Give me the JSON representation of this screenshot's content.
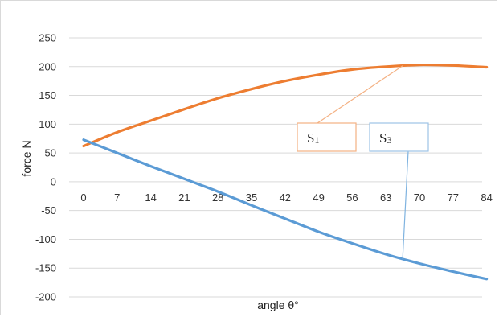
{
  "chart_data": {
    "type": "line",
    "xlabel": "angle θ°",
    "ylabel": "force N",
    "x": [
      0,
      7,
      14,
      21,
      28,
      35,
      42,
      49,
      56,
      63,
      70,
      77,
      84
    ],
    "ylim": [
      -200,
      250
    ],
    "yticks": [
      250,
      200,
      150,
      100,
      50,
      0,
      -50,
      -100,
      -150,
      -200
    ],
    "grid": true,
    "series": [
      {
        "name": "S1",
        "color": "#ed7d31",
        "values": [
          62,
          86,
          106,
          126,
          145,
          161,
          175,
          186,
          195,
          200,
          203,
          202,
          199
        ]
      },
      {
        "name": "S3",
        "color": "#5b9bd5",
        "values": [
          73,
          50,
          27,
          5,
          -17,
          -41,
          -64,
          -87,
          -107,
          -126,
          -142,
          -156,
          -169
        ]
      }
    ],
    "annotations": [
      {
        "series": "S1",
        "text_main": "S",
        "text_sub": "1",
        "border_color": "#f4b183",
        "line_color": "#f4b183",
        "points_to_x": 66.5
      },
      {
        "series": "S3",
        "text_main": "S",
        "text_sub": "3",
        "border_color": "#9dc3e6",
        "line_color": "#7fb3e0",
        "points_to_x": 66.5
      }
    ]
  }
}
